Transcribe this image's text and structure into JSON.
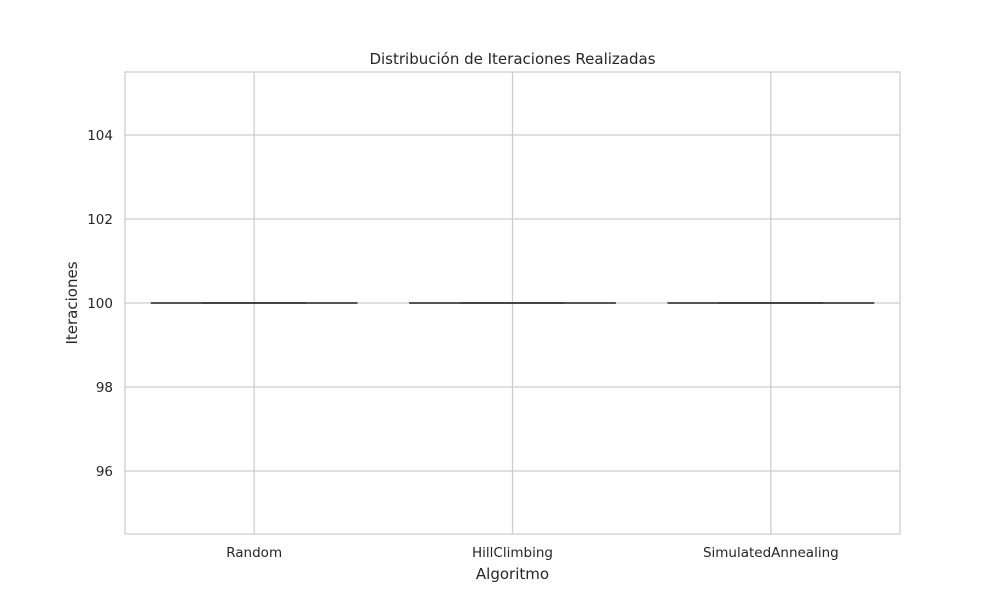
{
  "chart_data": {
    "type": "box",
    "title": "Distribución de Iteraciones Realizadas",
    "xlabel": "Algoritmo",
    "ylabel": "Iteraciones",
    "categories": [
      "Random",
      "HillClimbing",
      "SimulatedAnnealing"
    ],
    "series": [
      {
        "values": [
          {
            "min": 100,
            "q1": 100,
            "median": 100,
            "q3": 100,
            "max": 100
          },
          {
            "min": 100,
            "q1": 100,
            "median": 100,
            "q3": 100,
            "max": 100
          },
          {
            "min": 100,
            "q1": 100,
            "median": 100,
            "q3": 100,
            "max": 100
          }
        ]
      }
    ],
    "ylim": [
      94.5,
      105.5
    ],
    "yticks": [
      96,
      98,
      100,
      102,
      104
    ],
    "grid": true,
    "legend": "none",
    "colors": {
      "grid": "#cccccc",
      "axes": "#cccccc",
      "box_line": "#3f3f3f",
      "text": "#262626"
    }
  }
}
